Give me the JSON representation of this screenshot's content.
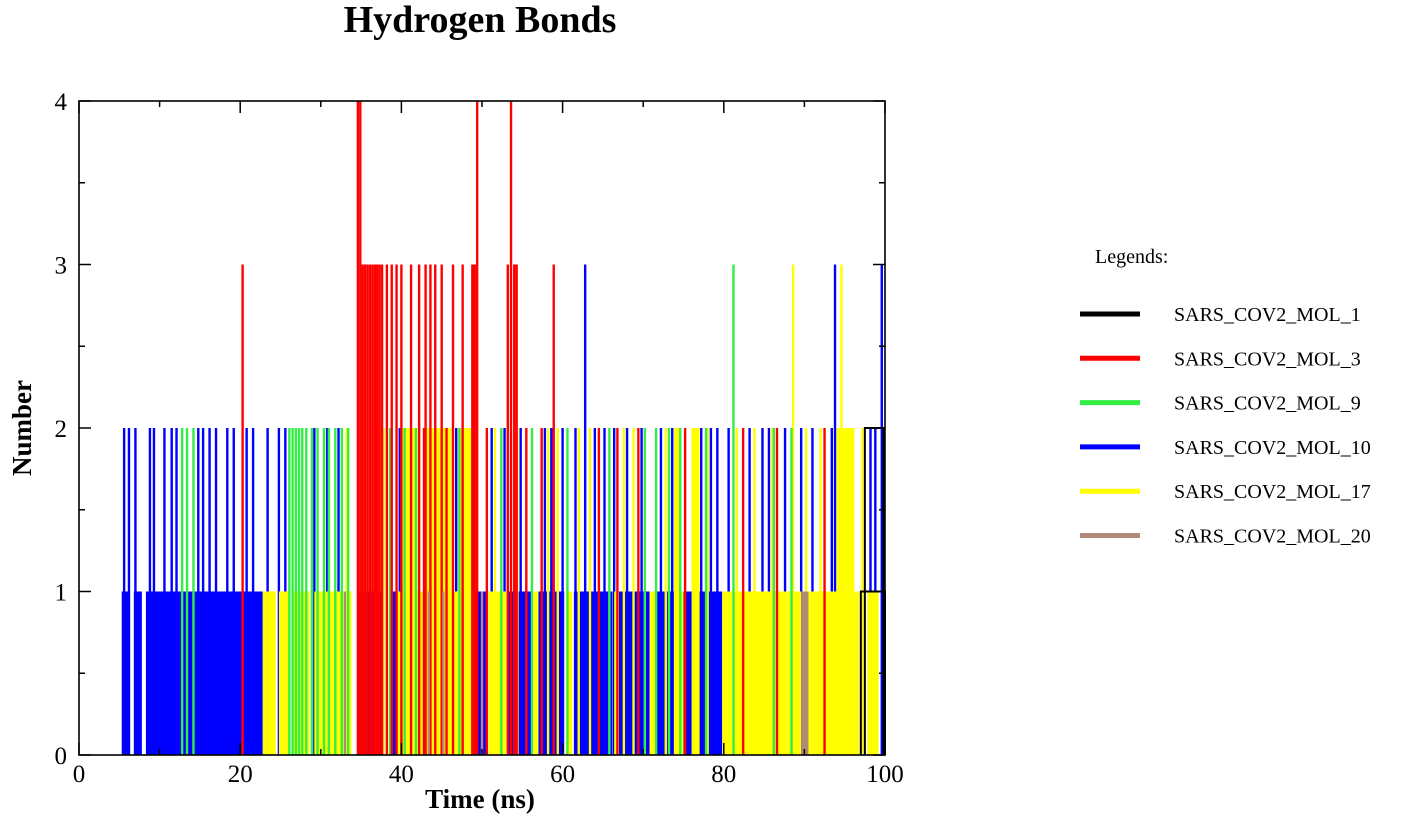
{
  "chart_data": {
    "type": "line",
    "title": "Hydrogen Bonds",
    "xlabel": "Time (ns)",
    "ylabel": "Number",
    "xlim": [
      0,
      100
    ],
    "ylim": [
      0,
      4
    ],
    "x_ticks": [
      0,
      20,
      40,
      60,
      80,
      100
    ],
    "y_ticks": [
      0,
      1,
      2,
      3,
      4
    ],
    "grid": false,
    "legend_position": "right",
    "legend_title": "Legends:",
    "series": [
      {
        "name": "SARS_COV2_MOL_1",
        "color": "#000000",
        "segments": [
          {
            "x": [
              97.0,
              100.0
            ],
            "y": 1
          },
          {
            "x": [
              97.5,
              99.8
            ],
            "y": 2
          }
        ]
      },
      {
        "name": "SARS_COV2_MOL_3",
        "color": "#ff0000",
        "spikes": [
          {
            "x": 20.3,
            "y": 3
          },
          {
            "x": 34.6,
            "y": 4
          },
          {
            "x": 34.9,
            "y": 4
          },
          {
            "x": 35.2,
            "y": 3
          },
          {
            "x": 35.5,
            "y": 3
          },
          {
            "x": 35.8,
            "y": 3
          },
          {
            "x": 36.1,
            "y": 3
          },
          {
            "x": 36.4,
            "y": 3
          },
          {
            "x": 36.7,
            "y": 3
          },
          {
            "x": 37.0,
            "y": 3
          },
          {
            "x": 37.3,
            "y": 3
          },
          {
            "x": 37.6,
            "y": 3
          },
          {
            "x": 38.2,
            "y": 3
          },
          {
            "x": 38.8,
            "y": 3
          },
          {
            "x": 39.4,
            "y": 3
          },
          {
            "x": 40.0,
            "y": 3
          },
          {
            "x": 41.2,
            "y": 3
          },
          {
            "x": 42.2,
            "y": 3
          },
          {
            "x": 43.0,
            "y": 3
          },
          {
            "x": 43.6,
            "y": 3
          },
          {
            "x": 44.2,
            "y": 3
          },
          {
            "x": 45.0,
            "y": 3
          },
          {
            "x": 46.4,
            "y": 3
          },
          {
            "x": 47.6,
            "y": 3
          },
          {
            "x": 48.8,
            "y": 3
          },
          {
            "x": 49.1,
            "y": 3
          },
          {
            "x": 49.4,
            "y": 4
          },
          {
            "x": 53.2,
            "y": 3
          },
          {
            "x": 53.6,
            "y": 4
          },
          {
            "x": 54.0,
            "y": 3
          },
          {
            "x": 54.3,
            "y": 3
          },
          {
            "x": 58.9,
            "y": 3
          },
          {
            "x": 42.8,
            "y": 2
          },
          {
            "x": 45.6,
            "y": 2
          },
          {
            "x": 50.6,
            "y": 2
          },
          {
            "x": 55.5,
            "y": 2
          },
          {
            "x": 57.4,
            "y": 2
          },
          {
            "x": 64.5,
            "y": 2
          },
          {
            "x": 66.8,
            "y": 2
          },
          {
            "x": 69.4,
            "y": 2
          },
          {
            "x": 75.2,
            "y": 2
          },
          {
            "x": 82.4,
            "y": 2
          },
          {
            "x": 86.6,
            "y": 2
          },
          {
            "x": 92.5,
            "y": 2
          }
        ]
      },
      {
        "name": "SARS_COV2_MOL_9",
        "color": "#33ee44",
        "spikes": [
          {
            "x": 12.8,
            "y": 2
          },
          {
            "x": 13.4,
            "y": 2
          },
          {
            "x": 14.2,
            "y": 2
          },
          {
            "x": 26.1,
            "y": 2
          },
          {
            "x": 26.5,
            "y": 2
          },
          {
            "x": 26.9,
            "y": 2
          },
          {
            "x": 27.3,
            "y": 2
          },
          {
            "x": 27.7,
            "y": 2
          },
          {
            "x": 28.2,
            "y": 2
          },
          {
            "x": 28.9,
            "y": 2
          },
          {
            "x": 29.6,
            "y": 2
          },
          {
            "x": 30.4,
            "y": 2
          },
          {
            "x": 31.0,
            "y": 2
          },
          {
            "x": 31.8,
            "y": 2
          },
          {
            "x": 32.6,
            "y": 2
          },
          {
            "x": 33.4,
            "y": 2
          },
          {
            "x": 38.6,
            "y": 2
          },
          {
            "x": 40.4,
            "y": 2
          },
          {
            "x": 41.8,
            "y": 2
          },
          {
            "x": 47.2,
            "y": 2
          },
          {
            "x": 52.4,
            "y": 2
          },
          {
            "x": 56.2,
            "y": 2
          },
          {
            "x": 60.6,
            "y": 2
          },
          {
            "x": 65.8,
            "y": 2
          },
          {
            "x": 70.2,
            "y": 2
          },
          {
            "x": 71.6,
            "y": 2
          },
          {
            "x": 73.2,
            "y": 2
          },
          {
            "x": 74.6,
            "y": 2
          },
          {
            "x": 77.8,
            "y": 2
          },
          {
            "x": 81.2,
            "y": 3
          },
          {
            "x": 86.2,
            "y": 2
          },
          {
            "x": 88.4,
            "y": 2
          }
        ]
      },
      {
        "name": "SARS_COV2_MOL_10",
        "color": "#0000ff",
        "bands": [
          {
            "x": [
              5.3,
              6.3
            ],
            "y": 1
          },
          {
            "x": [
              6.8,
              7.8
            ],
            "y": 1
          },
          {
            "x": [
              8.3,
              22.8
            ],
            "y": 1
          },
          {
            "x": [
              34.6,
              37.6
            ],
            "y": 1
          },
          {
            "x": [
              38.6,
              39.4
            ],
            "y": 1
          },
          {
            "x": [
              49.2,
              50.6
            ],
            "y": 1
          },
          {
            "x": [
              53.2,
              56.2
            ],
            "y": 1
          },
          {
            "x": [
              57.0,
              60.2
            ],
            "y": 1
          },
          {
            "x": [
              61.4,
              66.2
            ],
            "y": 1
          },
          {
            "x": [
              67.0,
              70.8
            ],
            "y": 1
          },
          {
            "x": [
              71.6,
              74.2
            ],
            "y": 1
          },
          {
            "x": [
              75.0,
              79.8
            ],
            "y": 1
          }
        ],
        "spikes": [
          {
            "x": 5.6,
            "y": 2
          },
          {
            "x": 6.2,
            "y": 2
          },
          {
            "x": 7.0,
            "y": 2
          },
          {
            "x": 8.8,
            "y": 2
          },
          {
            "x": 9.3,
            "y": 2
          },
          {
            "x": 10.6,
            "y": 2
          },
          {
            "x": 11.5,
            "y": 2
          },
          {
            "x": 12.1,
            "y": 2
          },
          {
            "x": 14.8,
            "y": 2
          },
          {
            "x": 15.4,
            "y": 2
          },
          {
            "x": 16.2,
            "y": 2
          },
          {
            "x": 17.0,
            "y": 2
          },
          {
            "x": 18.4,
            "y": 2
          },
          {
            "x": 19.2,
            "y": 2
          },
          {
            "x": 20.8,
            "y": 2
          },
          {
            "x": 21.6,
            "y": 2
          },
          {
            "x": 23.4,
            "y": 2
          },
          {
            "x": 24.8,
            "y": 2
          },
          {
            "x": 25.6,
            "y": 2
          },
          {
            "x": 29.2,
            "y": 2
          },
          {
            "x": 30.8,
            "y": 2
          },
          {
            "x": 32.2,
            "y": 2
          },
          {
            "x": 36.8,
            "y": 2
          },
          {
            "x": 39.8,
            "y": 2
          },
          {
            "x": 41.0,
            "y": 2
          },
          {
            "x": 44.6,
            "y": 2
          },
          {
            "x": 46.8,
            "y": 2
          },
          {
            "x": 48.2,
            "y": 2
          },
          {
            "x": 49.0,
            "y": 3
          },
          {
            "x": 51.2,
            "y": 2
          },
          {
            "x": 52.8,
            "y": 2
          },
          {
            "x": 54.8,
            "y": 2
          },
          {
            "x": 57.8,
            "y": 2
          },
          {
            "x": 58.6,
            "y": 2
          },
          {
            "x": 60.0,
            "y": 2
          },
          {
            "x": 61.6,
            "y": 2
          },
          {
            "x": 62.8,
            "y": 3
          },
          {
            "x": 64.0,
            "y": 2
          },
          {
            "x": 65.2,
            "y": 2
          },
          {
            "x": 66.4,
            "y": 2
          },
          {
            "x": 68.0,
            "y": 2
          },
          {
            "x": 69.8,
            "y": 2
          },
          {
            "x": 72.2,
            "y": 2
          },
          {
            "x": 73.6,
            "y": 2
          },
          {
            "x": 76.6,
            "y": 2
          },
          {
            "x": 77.2,
            "y": 2
          },
          {
            "x": 78.4,
            "y": 2
          },
          {
            "x": 79.2,
            "y": 2
          },
          {
            "x": 80.6,
            "y": 2
          },
          {
            "x": 83.2,
            "y": 2
          },
          {
            "x": 84.8,
            "y": 2
          },
          {
            "x": 85.6,
            "y": 2
          },
          {
            "x": 87.6,
            "y": 2
          },
          {
            "x": 89.6,
            "y": 2
          },
          {
            "x": 91.0,
            "y": 2
          },
          {
            "x": 93.4,
            "y": 2
          },
          {
            "x": 93.8,
            "y": 3
          },
          {
            "x": 95.2,
            "y": 2
          },
          {
            "x": 98.2,
            "y": 2
          },
          {
            "x": 98.8,
            "y": 2
          },
          {
            "x": 99.6,
            "y": 3
          }
        ]
      },
      {
        "name": "SARS_COV2_MOL_17",
        "color": "#ffff00",
        "bands": [
          {
            "x": [
              22.8,
              24.4
            ],
            "y": 1
          },
          {
            "x": [
              24.8,
              26.0
            ],
            "y": 1
          },
          {
            "x": [
              26.6,
              28.6
            ],
            "y": 1
          },
          {
            "x": [
              29.2,
              33.8
            ],
            "y": 1
          },
          {
            "x": [
              39.4,
              49.0
            ],
            "y": 1
          },
          {
            "x": [
              50.8,
              53.0
            ],
            "y": 1
          },
          {
            "x": [
              56.4,
              57.0
            ],
            "y": 1
          },
          {
            "x": [
              60.4,
              61.2
            ],
            "y": 1
          },
          {
            "x": [
              66.4,
              67.0
            ],
            "y": 1
          },
          {
            "x": [
              70.8,
              71.6
            ],
            "y": 1
          },
          {
            "x": [
              74.2,
              75.0
            ],
            "y": 1
          },
          {
            "x": [
              79.8,
              89.6
            ],
            "y": 1
          },
          {
            "x": [
              90.4,
              96.8
            ],
            "y": 1
          },
          {
            "x": [
              97.8,
              99.2
            ],
            "y": 1
          },
          {
            "x": [
              40.0,
              42.0
            ],
            "y": 2
          },
          {
            "x": [
              42.8,
              46.2
            ],
            "y": 2
          },
          {
            "x": [
              47.0,
              48.8
            ],
            "y": 2
          },
          {
            "x": [
              73.8,
              74.6
            ],
            "y": 2
          },
          {
            "x": [
              76.0,
              77.0
            ],
            "y": 2
          },
          {
            "x": [
              94.0,
              96.2
            ],
            "y": 2
          }
        ],
        "spikes": [
          {
            "x": 33.2,
            "y": 2
          },
          {
            "x": 37.8,
            "y": 2
          },
          {
            "x": 51.6,
            "y": 2
          },
          {
            "x": 54.4,
            "y": 2
          },
          {
            "x": 58.2,
            "y": 2
          },
          {
            "x": 59.4,
            "y": 2
          },
          {
            "x": 62.0,
            "y": 2
          },
          {
            "x": 63.4,
            "y": 2
          },
          {
            "x": 67.6,
            "y": 2
          },
          {
            "x": 68.8,
            "y": 2
          },
          {
            "x": 72.8,
            "y": 2
          },
          {
            "x": 78.0,
            "y": 2
          },
          {
            "x": 81.6,
            "y": 2
          },
          {
            "x": 83.8,
            "y": 2
          },
          {
            "x": 86.0,
            "y": 2
          },
          {
            "x": 88.6,
            "y": 3
          },
          {
            "x": 90.2,
            "y": 2
          },
          {
            "x": 92.0,
            "y": 2
          },
          {
            "x": 94.6,
            "y": 3
          },
          {
            "x": 97.2,
            "y": 2
          }
        ]
      },
      {
        "name": "SARS_COV2_MOL_20",
        "color": "#b08a78",
        "bands": [
          {
            "x": [
              89.6,
              90.5
            ],
            "y": 1
          }
        ],
        "spikes": [
          {
            "x": 33.0,
            "y": 1
          },
          {
            "x": 43.4,
            "y": 1
          },
          {
            "x": 45.2,
            "y": 1
          },
          {
            "x": 50.0,
            "y": 1
          }
        ]
      }
    ]
  }
}
